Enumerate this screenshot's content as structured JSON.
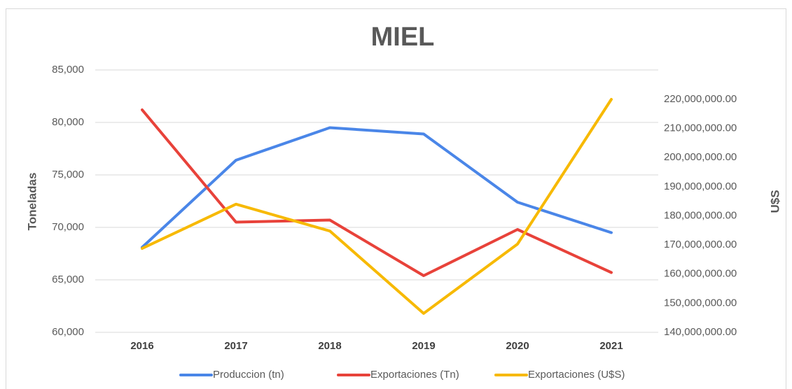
{
  "chart_data": {
    "type": "line",
    "title": "MIEL",
    "categories": [
      "2016",
      "2017",
      "2018",
      "2019",
      "2020",
      "2021"
    ],
    "ylabel": "Toneladas",
    "y2label": "U$S",
    "ylim": [
      60000,
      85000
    ],
    "yticks": [
      {
        "value": 60000,
        "label": "60,000"
      },
      {
        "value": 65000,
        "label": "65,000"
      },
      {
        "value": 70000,
        "label": "70,000"
      },
      {
        "value": 75000,
        "label": "75,000"
      },
      {
        "value": 80000,
        "label": "80,000"
      },
      {
        "value": 85000,
        "label": "85,000"
      }
    ],
    "y2lim": [
      140000000,
      220000000
    ],
    "y2ticks": [
      {
        "value": 140000000,
        "label": "140,000,000.00"
      },
      {
        "value": 150000000,
        "label": "150,000,000.00"
      },
      {
        "value": 160000000,
        "label": "160,000,000.00"
      },
      {
        "value": 170000000,
        "label": "170,000,000.00"
      },
      {
        "value": 180000000,
        "label": "180,000,000.00"
      },
      {
        "value": 190000000,
        "label": "190,000,000.00"
      },
      {
        "value": 200000000,
        "label": "200,000,000.00"
      },
      {
        "value": 210000000,
        "label": "210,000,000.00"
      },
      {
        "value": 220000000,
        "label": "220,000,000.00"
      }
    ],
    "grid": true,
    "legend": "bottom",
    "series": [
      {
        "name": "Produccion (tn)",
        "color": "#4a86e8",
        "values": [
          68100,
          76400,
          79500,
          78900,
          72400,
          69500
        ]
      },
      {
        "name": "Exportaciones (Tn)",
        "color": "#e8423a",
        "values": [
          81200,
          70500,
          70700,
          65400,
          69800,
          65700
        ]
      },
      {
        "name": "Exportaciones (U$S)",
        "color": "#f7b900",
        "axis": "y2",
        "values": [
          168800000,
          184000000,
          174800000,
          146500000,
          170300000,
          220000000
        ]
      }
    ]
  }
}
